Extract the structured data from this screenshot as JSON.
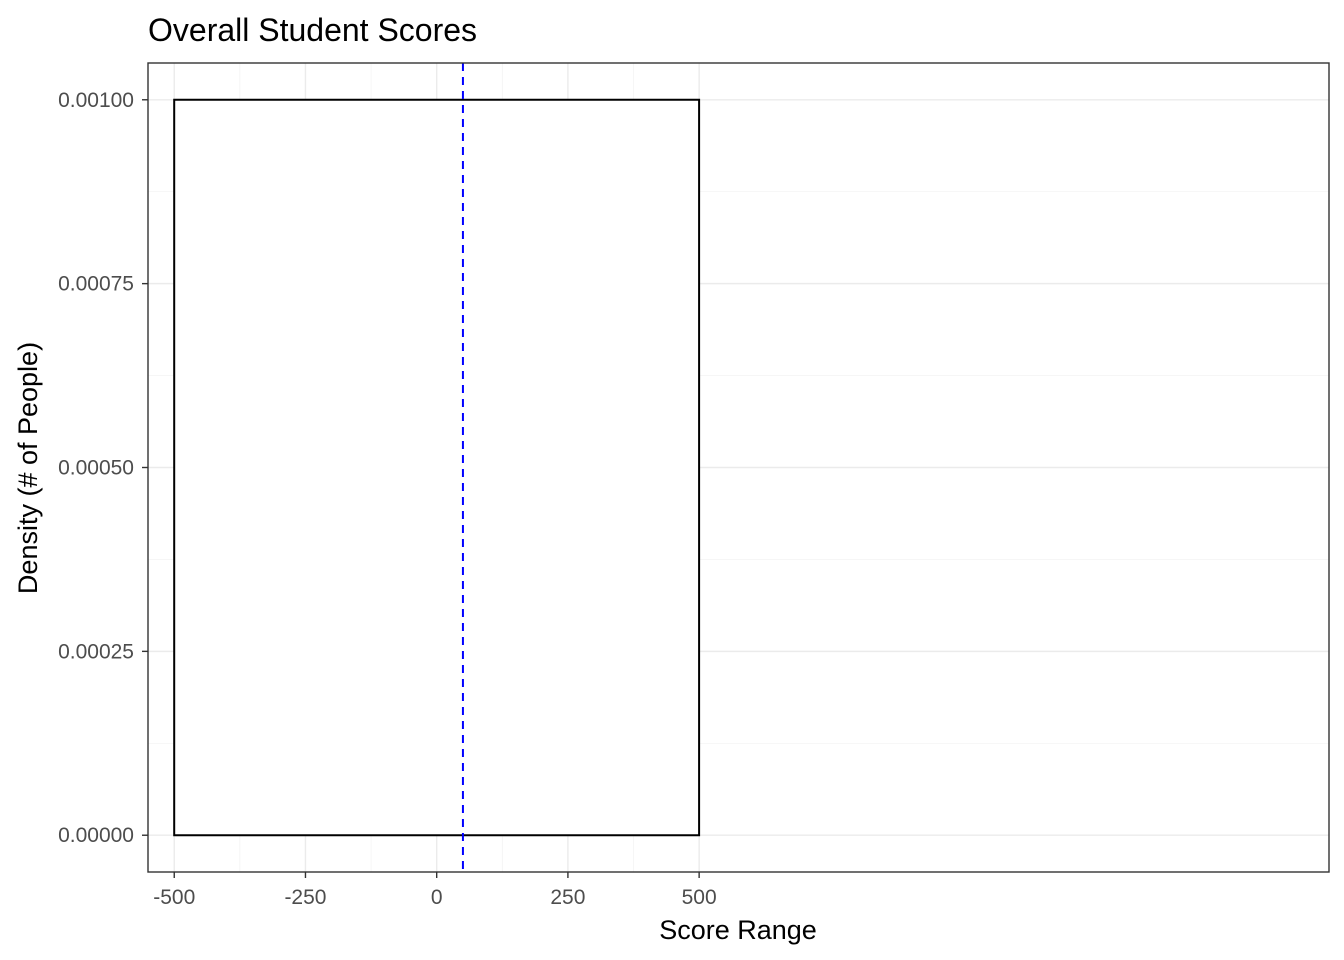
{
  "chart_data": {
    "type": "area",
    "title": "Overall Student Scores",
    "xlabel": "Score Range",
    "ylabel": "Density (# of People)",
    "xlim": [
      -550,
      1700
    ],
    "ylim": [
      -5e-05,
      0.00105
    ],
    "x_ticks": [
      -500,
      -250,
      0,
      250,
      500
    ],
    "x_tick_labels": [
      "-500",
      "-250",
      "0",
      "250",
      "500"
    ],
    "y_ticks": [
      0,
      0.00025,
      0.0005,
      0.00075,
      0.001
    ],
    "y_tick_labels": [
      "0.00000",
      "0.00025",
      "0.00050",
      "0.00075",
      "0.00100"
    ],
    "series": [
      {
        "x": [
          -500,
          -500,
          500,
          500,
          -500
        ],
        "y": [
          0,
          0.001,
          0.001,
          0,
          0
        ]
      }
    ],
    "reference_line": {
      "x": 50,
      "style": "dashed",
      "color": "#0000ff"
    },
    "grid": true,
    "legend": "none",
    "outline_color": "#000000",
    "fill_color": "#ffffff"
  }
}
